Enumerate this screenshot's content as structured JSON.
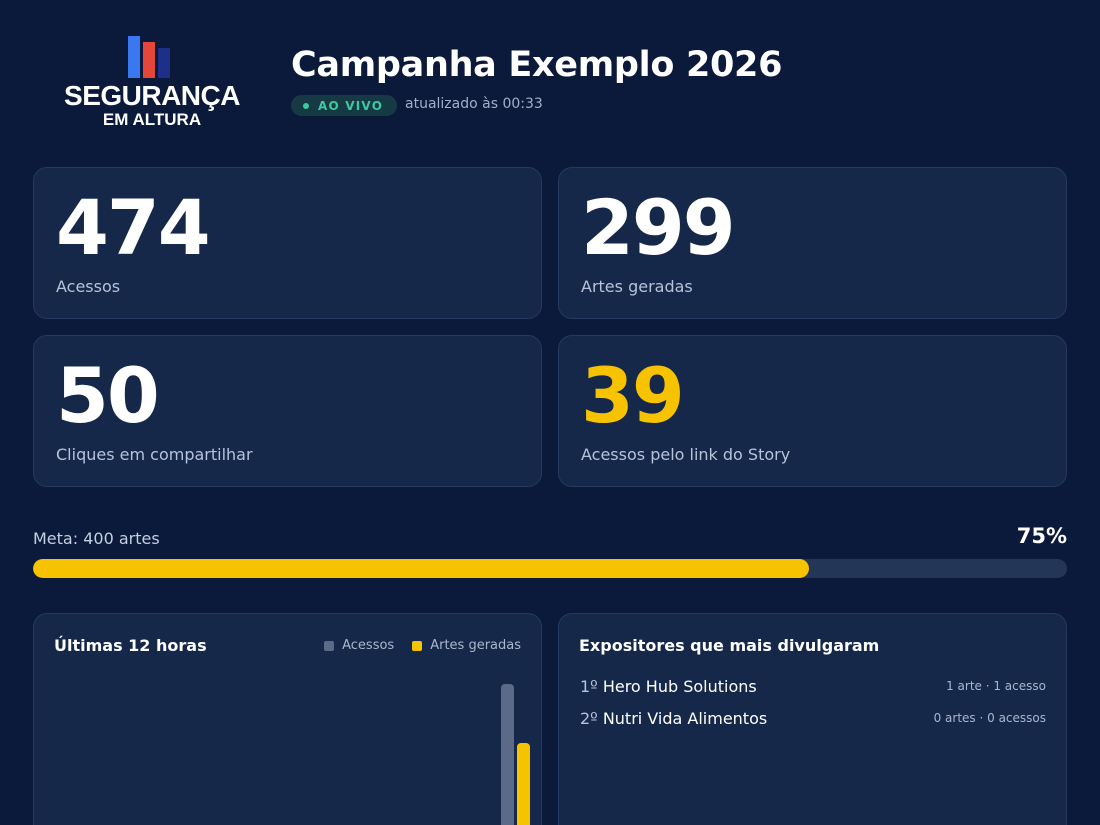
{
  "brand": {
    "line1": "SEGURANÇA",
    "line2": "EM ALTURA"
  },
  "header": {
    "title": "Campanha Exemplo 2026",
    "live_badge": "AO VIVO",
    "updated": "atualizado às 00:33"
  },
  "stats": [
    {
      "value": "474",
      "label": "Acessos",
      "color": "#ffffff"
    },
    {
      "value": "299",
      "label": "Artes geradas",
      "color": "#ffffff"
    },
    {
      "value": "50",
      "label": "Cliques em compartilhar",
      "color": "#ffffff"
    },
    {
      "value": "39",
      "label": "Acessos pelo link do Story",
      "color": "#f7c300"
    }
  ],
  "goal": {
    "label": "Meta: 400 artes",
    "percent_text": "75%",
    "progress": 0.75
  },
  "chart_panel": {
    "title": "Últimas 12 horas",
    "legend": [
      {
        "name": "Acessos",
        "color": "#5b6a86"
      },
      {
        "name": "Artes geradas",
        "color": "#f7c300"
      }
    ]
  },
  "chart_data": {
    "type": "bar",
    "title": "Últimas 12 horas",
    "series": [
      {
        "name": "Acessos",
        "values": [
          0,
          0,
          0,
          0,
          0,
          0,
          0,
          0,
          0,
          0,
          0,
          474
        ]
      },
      {
        "name": "Artes geradas",
        "values": [
          0,
          0,
          0,
          0,
          0,
          0,
          0,
          0,
          0,
          0,
          0,
          299
        ]
      }
    ],
    "colors": [
      "#5b6a86",
      "#f7c300"
    ]
  },
  "ranking_panel": {
    "title": "Expositores que mais divulgaram",
    "items": [
      {
        "pos": "1º",
        "name": "Hero Hub Solutions",
        "meta": "1 arte · 1 acesso"
      },
      {
        "pos": "2º",
        "name": "Nutri Vida Alimentos",
        "meta": "0 artes · 0 acessos"
      }
    ]
  }
}
